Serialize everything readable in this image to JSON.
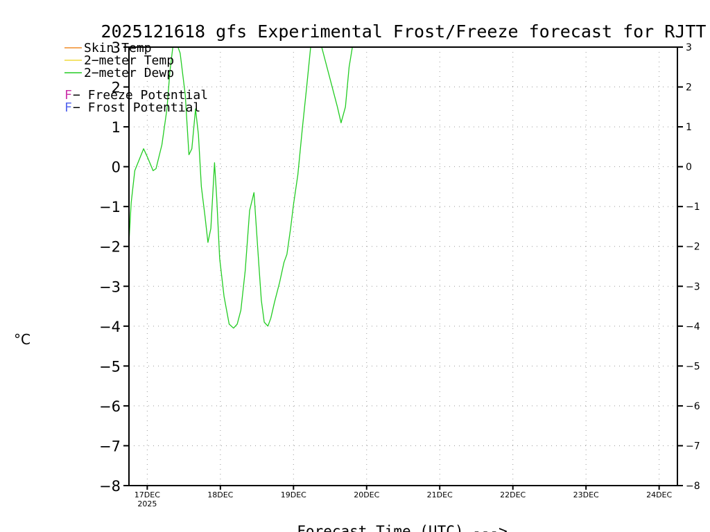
{
  "chart_data": {
    "type": "line",
    "title": "2025121618 gfs Experimental Frost/Freeze forecast for RJTT",
    "xlabel": "Forecast Time (UTC) --->",
    "ylabel": "°C",
    "ylim": [
      -8,
      3
    ],
    "yticks": [
      3,
      2,
      1,
      0,
      -1,
      -2,
      -3,
      -4,
      -5,
      -6,
      -7,
      -8
    ],
    "ytick_labels_left": [
      "3",
      "2",
      "1",
      "0",
      "−1",
      "−2",
      "−3",
      "−4",
      "−5",
      "−6",
      "−7",
      "−8"
    ],
    "ytick_labels_right": [
      "3",
      "2",
      "1",
      "0",
      "−1",
      "−2",
      "−3",
      "−4",
      "−5",
      "−6",
      "−7",
      "−8"
    ],
    "x_unit": "days since 16DEC 2025 00UTC",
    "xlim": [
      0.75,
      8.25
    ],
    "xticks": [
      {
        "x": 1,
        "label": "17DEC",
        "sublabel": "2025"
      },
      {
        "x": 2,
        "label": "18DEC"
      },
      {
        "x": 3,
        "label": "19DEC"
      },
      {
        "x": 4,
        "label": "20DEC"
      },
      {
        "x": 5,
        "label": "21DEC"
      },
      {
        "x": 6,
        "label": "22DEC"
      },
      {
        "x": 7,
        "label": "23DEC"
      },
      {
        "x": 8,
        "label": "24DEC"
      }
    ],
    "grid": true,
    "legend": [
      {
        "label": "Skin Temp",
        "color": "#f08c28"
      },
      {
        "label": "2−meter Temp",
        "color": "#f0dc3c"
      },
      {
        "label": "2−meter Dewp",
        "color": "#22cc22"
      }
    ],
    "annotations": [
      {
        "marker": "F",
        "text": " − Freeze Potential",
        "color": "#cc33aa"
      },
      {
        "marker": "F",
        "text": " − Frost Potential",
        "color": "#5566ee"
      }
    ],
    "series": [
      {
        "name": "Skin Temp",
        "color": "#f08c28",
        "x": [],
        "values": []
      },
      {
        "name": "2−meter Temp",
        "color": "#f0dc3c",
        "x": [],
        "values": []
      },
      {
        "name": "2−meter Dewp",
        "color": "#22cc22",
        "x": [
          0.75,
          0.78,
          0.83,
          0.95,
          1.0,
          1.08,
          1.12,
          1.2,
          1.27,
          1.31,
          1.36,
          1.41,
          1.45,
          1.52,
          1.57,
          1.61,
          1.66,
          1.7,
          1.74,
          1.79,
          1.83,
          1.87,
          1.92,
          1.95,
          1.99,
          2.05,
          2.12,
          2.18,
          2.23,
          2.28,
          2.34,
          2.4,
          2.46,
          2.52,
          2.56,
          2.6,
          2.65,
          2.69,
          2.74,
          2.81,
          2.87,
          2.91,
          2.96,
          3.0,
          3.06,
          3.12,
          3.18,
          3.24,
          3.3,
          3.35,
          3.6,
          3.65,
          3.71,
          3.76,
          3.81,
          3.86
        ],
        "values": [
          -1.9,
          -0.9,
          -0.1,
          0.45,
          0.25,
          -0.1,
          -0.05,
          0.55,
          1.45,
          2.4,
          3.15,
          3.05,
          2.85,
          1.8,
          0.3,
          0.45,
          1.45,
          0.8,
          -0.5,
          -1.25,
          -1.9,
          -1.55,
          0.1,
          -0.8,
          -2.3,
          -3.25,
          -3.95,
          -4.05,
          -3.95,
          -3.6,
          -2.6,
          -1.1,
          -0.65,
          -2.3,
          -3.35,
          -3.9,
          -4.0,
          -3.8,
          -3.4,
          -2.9,
          -2.4,
          -2.2,
          -1.55,
          -0.95,
          -0.2,
          0.95,
          2.0,
          3.1,
          3.25,
          3.25,
          1.5,
          1.1,
          1.5,
          2.5,
          3.05,
          3.3
        ]
      }
    ]
  }
}
